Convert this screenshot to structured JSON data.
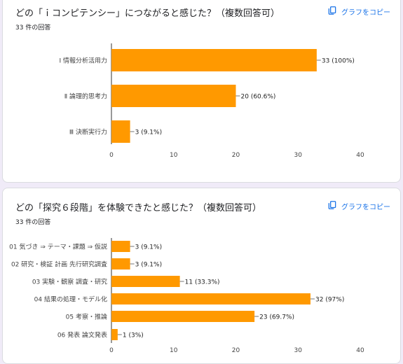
{
  "questions": [
    {
      "title": "どの「ｉコンピテンシー」につながると感じた？（複数回答可）",
      "count": "33 件の回答",
      "copy_label": "グラフをコピー",
      "copy_icon": "copy-icon"
    },
    {
      "title": "どの「探究６段階」を体験できたと感じた？（複数回答可）",
      "count": "33 件の回答",
      "copy_label": "グラフをコピー",
      "copy_icon": "copy-icon"
    }
  ],
  "colors": {
    "bar": "#ff9900",
    "accent": "#1a73e8",
    "background": "#f0ebf8"
  },
  "chart_data": [
    {
      "type": "bar",
      "orientation": "horizontal",
      "categories": [
        "Ⅰ 情報分析活用力",
        "Ⅱ 論理的思考力",
        "Ⅲ 決断実行力"
      ],
      "values": [
        33,
        20,
        3
      ],
      "data_labels": [
        "33 (100%)",
        "20 (60.6%)",
        "3 (9.1%)"
      ],
      "xlim": [
        0,
        40
      ],
      "xticks": [
        "0",
        "10",
        "20",
        "30",
        "40"
      ],
      "grid": false
    },
    {
      "type": "bar",
      "orientation": "horizontal",
      "categories": [
        "01 気づき ⇒ テーマ・課題 ⇒ 仮説",
        "02 研究・検証 計画 先行研究調査",
        "03 実験・観察 調査・研究",
        "04 結果の処理・モデル化",
        "05 考察・推論",
        "06 発表 論文発表"
      ],
      "values": [
        3,
        3,
        11,
        32,
        23,
        1
      ],
      "data_labels": [
        "3 (9.1%)",
        "3 (9.1%)",
        "11 (33.3%)",
        "32 (97%)",
        "23 (69.7%)",
        "1 (3%)"
      ],
      "xlim": [
        0,
        40
      ],
      "xticks": [
        "0",
        "10",
        "20",
        "30",
        "40"
      ],
      "grid": false
    }
  ]
}
